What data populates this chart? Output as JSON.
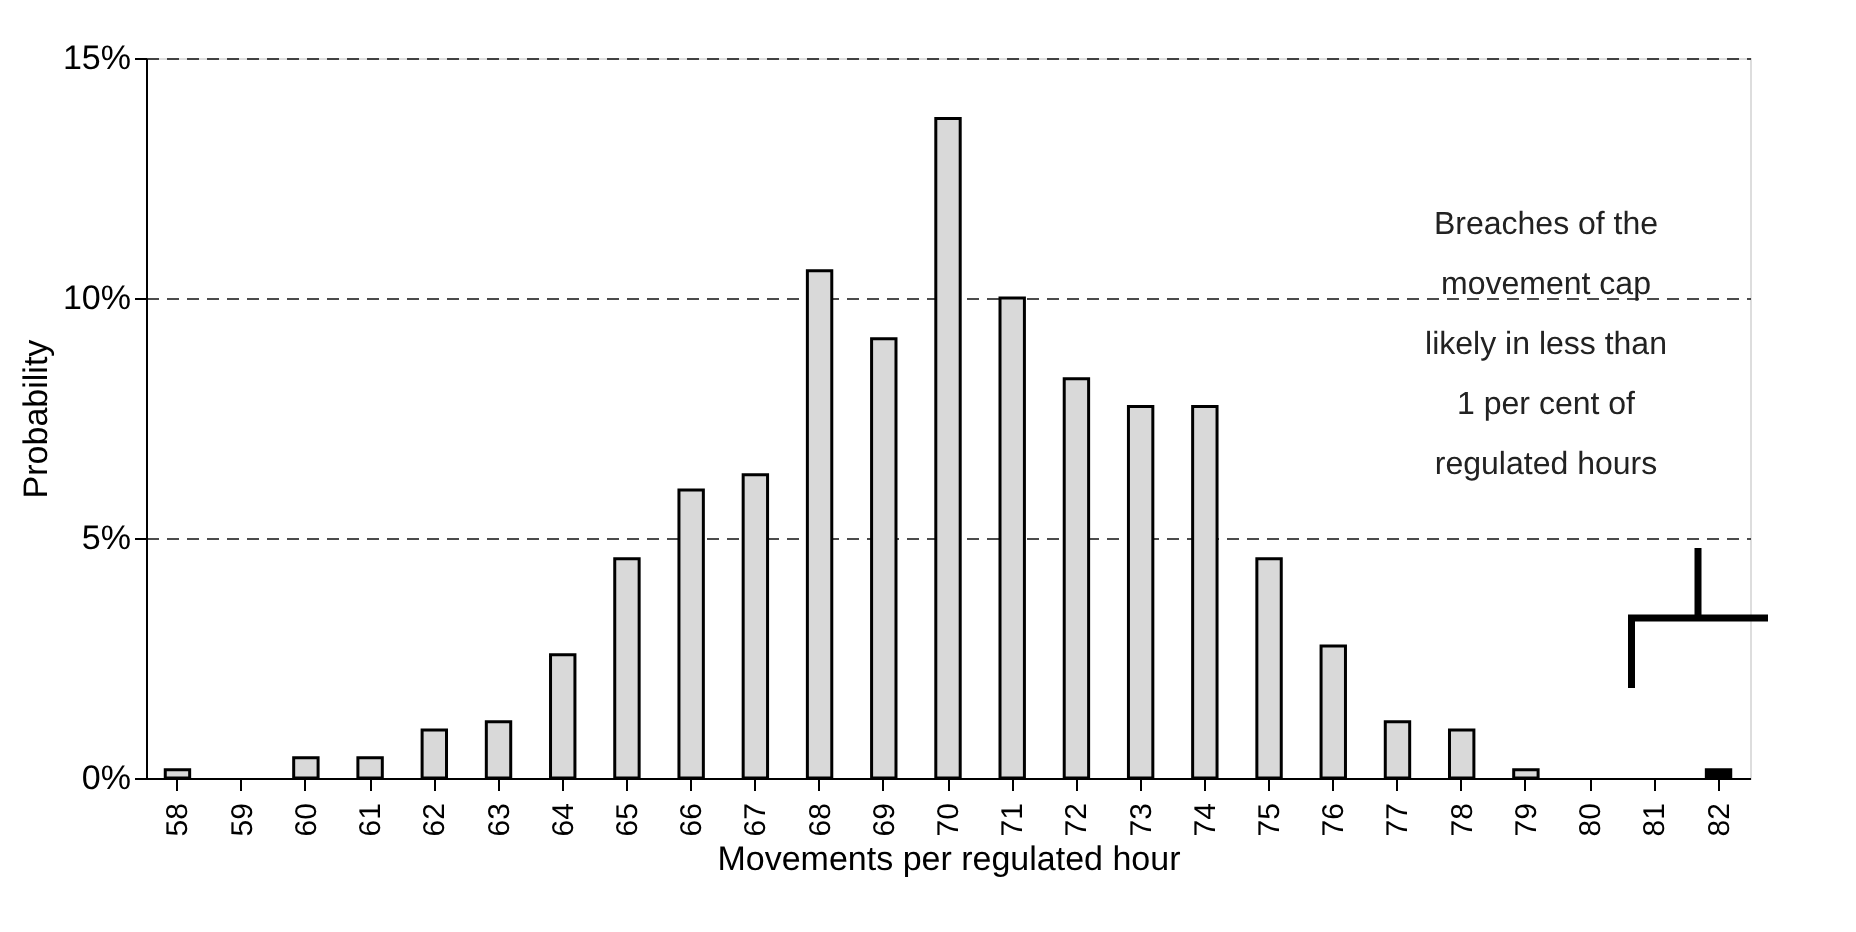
{
  "chart_data": {
    "type": "bar",
    "xlabel": "Movements  per regulated hour",
    "ylabel": "Probability",
    "categories": [
      "58",
      "59",
      "60",
      "61",
      "62",
      "63",
      "64",
      "65",
      "66",
      "67",
      "68",
      "69",
      "70",
      "71",
      "72",
      "73",
      "74",
      "75",
      "76",
      "77",
      "78",
      "79",
      "80",
      "81",
      "82"
    ],
    "values": [
      0.17,
      0,
      0.42,
      0.42,
      1.0,
      1.17,
      2.57,
      4.57,
      6.0,
      6.32,
      10.57,
      9.15,
      13.74,
      10.0,
      8.32,
      7.74,
      7.74,
      4.57,
      2.75,
      1.17,
      1.0,
      0.17,
      0,
      0,
      0.17
    ],
    "colors": [
      "#d9d9d9",
      "#d9d9d9",
      "#d9d9d9",
      "#d9d9d9",
      "#d9d9d9",
      "#d9d9d9",
      "#d9d9d9",
      "#d9d9d9",
      "#d9d9d9",
      "#d9d9d9",
      "#d9d9d9",
      "#d9d9d9",
      "#d9d9d9",
      "#d9d9d9",
      "#d9d9d9",
      "#d9d9d9",
      "#d9d9d9",
      "#d9d9d9",
      "#d9d9d9",
      "#d9d9d9",
      "#d9d9d9",
      "#d9d9d9",
      "#d9d9d9",
      "#d9d9d9",
      "#000000"
    ],
    "ylim": [
      0,
      15
    ],
    "yticks": [
      {
        "value": 0,
        "label": "0%"
      },
      {
        "value": 5,
        "label": "5%"
      },
      {
        "value": 10,
        "label": "10%"
      },
      {
        "value": 15,
        "label": "15%"
      }
    ],
    "grid": "y",
    "annotations": [
      "Breaches of the\nmovement cap\nlikely in less than\n1 per cent of\nregulated hours"
    ]
  }
}
